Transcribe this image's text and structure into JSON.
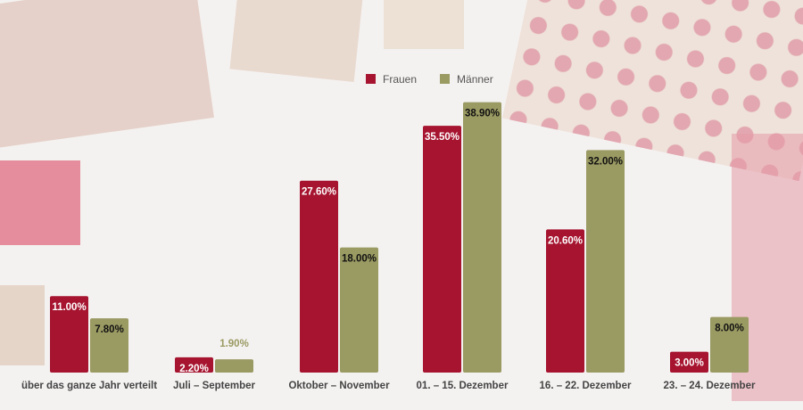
{
  "colors": {
    "frauen": "#a6142f",
    "maenner": "#9a9a63",
    "label_outside": "#9a9a63"
  },
  "legend": {
    "items": [
      {
        "label": "Frauen",
        "key": "frauen"
      },
      {
        "label": "Männer",
        "key": "maenner"
      }
    ]
  },
  "chart_data": {
    "type": "bar",
    "title": "",
    "xlabel": "",
    "ylabel": "",
    "ylim": [
      0,
      40
    ],
    "grid": false,
    "legend_position": "top-center",
    "categories": [
      "über das ganze Jahr verteilt",
      "Juli – September",
      "Oktober – November",
      "01. – 15. Dezember",
      "16. – 22. Dezember",
      "23. – 24. Dezember"
    ],
    "series": [
      {
        "name": "Frauen",
        "values": [
          11.0,
          2.2,
          27.6,
          35.5,
          20.6,
          3.0
        ],
        "labels": [
          "11.00%",
          "2.20%",
          "27.60%",
          "35.50%",
          "20.60%",
          "3.00%"
        ]
      },
      {
        "name": "Männer",
        "values": [
          7.8,
          1.9,
          18.0,
          38.9,
          32.0,
          8.0
        ],
        "labels": [
          "7.80%",
          "1.90%",
          "18.00%",
          "38.90%",
          "32.00%",
          "8.00%"
        ]
      }
    ]
  }
}
